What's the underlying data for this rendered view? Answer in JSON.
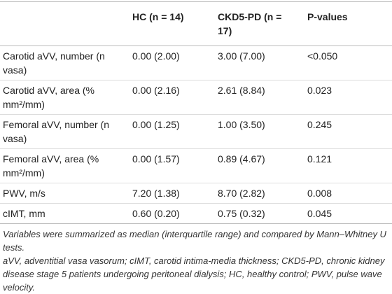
{
  "table": {
    "header": [
      "",
      "HC (n = 14)",
      "CKD5-PD (n = 17)",
      "P-values"
    ],
    "rows": [
      [
        "Carotid aVV, number (n vasa)",
        "0.00 (2.00)",
        "3.00 (7.00)",
        "<0.050"
      ],
      [
        "Carotid aVV, area (% mm²/mm)",
        "0.00 (2.16)",
        "2.61 (8.84)",
        "0.023"
      ],
      [
        "Femoral aVV, number (n vasa)",
        "0.00 (1.25)",
        "1.00 (3.50)",
        "0.245"
      ],
      [
        "Femoral aVV, area (% mm²/mm)",
        "0.00 (1.57)",
        "0.89 (4.67)",
        "0.121"
      ],
      [
        "PWV, m/s",
        "7.20 (1.38)",
        "8.70 (2.82)",
        "0.008"
      ],
      [
        "cIMT, mm",
        "0.60 (0.20)",
        "0.75 (0.32)",
        "0.045"
      ]
    ]
  },
  "footnotes": [
    "Variables were summarized as median (interquartile range) and compared by Mann–Whitney U tests.",
    "aVV, adventitial vasa vasorum; cIMT, carotid intima-media thickness; CKD5-PD, chronic kidney disease stage 5 patients undergoing peritoneal dialysis; HC, healthy control; PWV, pulse wave velocity."
  ]
}
